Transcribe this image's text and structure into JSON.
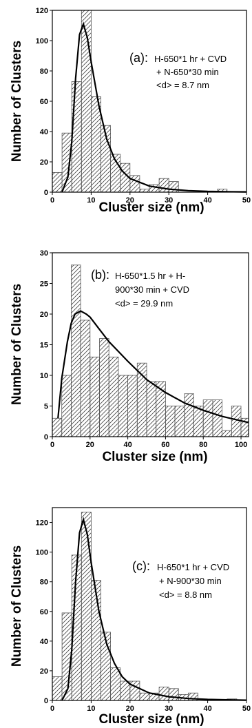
{
  "chart_data": [
    {
      "type": "bar",
      "panel_label": "(a):",
      "annotation": [
        "H-650*1 hr + CVD",
        "+ N-650*30 min",
        "<d> = 8.7 nm"
      ],
      "xlabel": "Cluster size (nm)",
      "ylabel": "Number of Clusters",
      "xlim": [
        0,
        50
      ],
      "ylim": [
        0,
        120
      ],
      "xticks": [
        0,
        10,
        20,
        30,
        40,
        50
      ],
      "yticks": [
        0,
        20,
        40,
        60,
        80,
        100,
        120
      ],
      "bin_width": 2.5,
      "bin_starts": [
        0,
        2.5,
        5,
        7.5,
        10,
        12.5,
        15,
        17.5,
        20,
        22.5,
        25,
        27.5,
        30,
        32.5,
        35,
        37.5,
        40,
        42.5,
        45,
        47.5
      ],
      "values": [
        13,
        39,
        73,
        120,
        63,
        44,
        25,
        19,
        11,
        2,
        5,
        9,
        7,
        0,
        0,
        0,
        0,
        2,
        0,
        0
      ],
      "fit": {
        "x": [
          2.5,
          4,
          5,
          6,
          7,
          8,
          9,
          10,
          12,
          14,
          16,
          18,
          20,
          25,
          30,
          35,
          40,
          45,
          50
        ],
        "y": [
          0,
          10,
          33,
          75,
          104,
          111,
          102,
          86,
          57,
          35,
          22,
          14,
          9,
          4,
          2,
          1,
          0.5,
          0.3,
          0.2
        ]
      }
    },
    {
      "type": "bar",
      "panel_label": "(b):",
      "annotation": [
        "H-650*1.5 hr + H-",
        "900*30 min + CVD",
        "<d> = 29.9 nm"
      ],
      "xlabel": "Cluster size (nm)",
      "ylabel": "Number of Clusters",
      "xlim": [
        0,
        104
      ],
      "ylim": [
        0,
        30
      ],
      "xticks": [
        0,
        20,
        40,
        60,
        80,
        100
      ],
      "yticks": [
        0,
        5,
        10,
        15,
        20,
        25,
        30
      ],
      "bin_width": 5,
      "bin_starts": [
        0,
        5,
        10,
        15,
        20,
        25,
        30,
        35,
        40,
        45,
        50,
        55,
        60,
        65,
        70,
        75,
        80,
        85,
        90,
        95,
        100
      ],
      "values": [
        3,
        10,
        28,
        19,
        13,
        16,
        13,
        10,
        10,
        12,
        9,
        9,
        5,
        5,
        7,
        5,
        6,
        6,
        1,
        5,
        3
      ],
      "fit": {
        "x": [
          3,
          5,
          8,
          10,
          12,
          15,
          18,
          20,
          25,
          30,
          40,
          50,
          60,
          70,
          80,
          90,
          100,
          104
        ],
        "y": [
          3,
          9.5,
          15.5,
          18.5,
          20,
          20.5,
          20,
          19.5,
          17.5,
          15.5,
          12.3,
          9.3,
          7.2,
          5.5,
          4.3,
          3.3,
          2.6,
          2.3
        ]
      }
    },
    {
      "type": "bar",
      "panel_label": "(c):",
      "annotation": [
        "H-650*1 hr + CVD",
        "+ N-900*30 min",
        "<d> = 8.8 nm"
      ],
      "xlabel": "Cluster size (nm)",
      "ylabel": "Number of Clusters",
      "xlim": [
        0,
        50
      ],
      "ylim": [
        0,
        130
      ],
      "xticks": [
        0,
        10,
        20,
        30,
        40,
        50
      ],
      "yticks": [
        0,
        20,
        40,
        60,
        80,
        100,
        120
      ],
      "bin_width": 2.5,
      "bin_starts": [
        0,
        2.5,
        5,
        7.5,
        10,
        12.5,
        15,
        17.5,
        20,
        22.5,
        25,
        27.5,
        30,
        32.5,
        35,
        37.5,
        40,
        42.5,
        45,
        47.5
      ],
      "values": [
        16,
        59,
        98,
        127,
        81,
        46,
        22,
        13,
        13,
        5,
        5,
        9,
        8,
        4,
        5,
        0,
        0,
        0,
        1,
        0
      ],
      "fit": {
        "x": [
          2.5,
          4,
          5,
          6,
          7,
          8,
          9,
          10,
          12,
          14,
          16,
          18,
          20,
          25,
          30,
          35,
          40,
          45,
          50
        ],
        "y": [
          0,
          8,
          34,
          80,
          113,
          122,
          112,
          93,
          60,
          38,
          25,
          16,
          11,
          5,
          2.5,
          1.3,
          0.7,
          0.4,
          0.2
        ]
      }
    }
  ]
}
